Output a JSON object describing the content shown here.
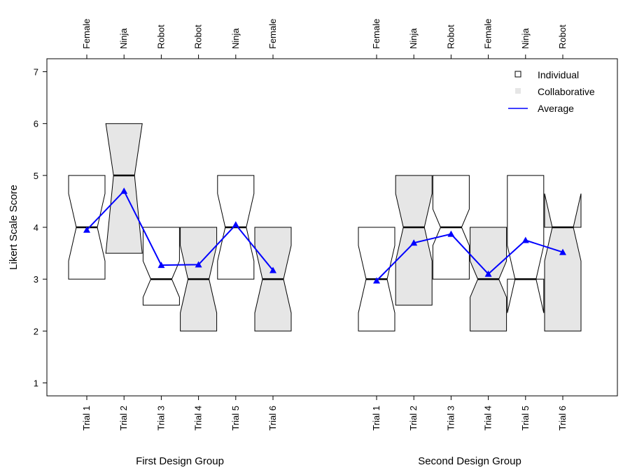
{
  "chart_data": {
    "type": "boxplot",
    "ylabel": "Likert Scale Score",
    "ylim": [
      0.75,
      7.25
    ],
    "yticks": [
      1,
      2,
      3,
      4,
      5,
      6,
      7
    ],
    "legend": {
      "placement": "top-right",
      "entries": [
        {
          "label": "Individual",
          "kind": "individual"
        },
        {
          "label": "Collaborative",
          "kind": "collaborative"
        },
        {
          "label": "Average",
          "kind": "average"
        }
      ]
    },
    "colors": {
      "individual_fill": "#ffffff",
      "collaborative_fill": "#e6e6e6",
      "average_line": "#0000ff",
      "outline": "#000000"
    },
    "groups": [
      {
        "name": "First Design Group",
        "trials": [
          {
            "label": "Trial 1",
            "top_label": "Female",
            "type": "individual",
            "q1": 3,
            "median": 4,
            "q3": 5,
            "notch_lo": 3.35,
            "notch_hi": 4.65,
            "mean": 3.95
          },
          {
            "label": "Trial 2",
            "top_label": "Ninja",
            "type": "collaborative",
            "q1": 3.5,
            "median": 5,
            "q3": 6,
            "notch_lo": 3.5,
            "notch_hi": 6,
            "mean": 4.7
          },
          {
            "label": "Trial 3",
            "top_label": "Robot",
            "type": "individual",
            "q1": 2.5,
            "median": 3,
            "q3": 4,
            "notch_lo": 2.65,
            "notch_hi": 3.35,
            "mean": 3.27
          },
          {
            "label": "Trial 4",
            "top_label": "Robot",
            "type": "collaborative",
            "q1": 2,
            "median": 3,
            "q3": 4,
            "notch_lo": 2.35,
            "notch_hi": 3.65,
            "mean": 3.28
          },
          {
            "label": "Trial 5",
            "top_label": "Ninja",
            "type": "individual",
            "q1": 3,
            "median": 4,
            "q3": 5,
            "notch_lo": 3.35,
            "notch_hi": 4.65,
            "mean": 4.05
          },
          {
            "label": "Trial 6",
            "top_label": "Female",
            "type": "collaborative",
            "q1": 2,
            "median": 3,
            "q3": 4,
            "notch_lo": 2.35,
            "notch_hi": 3.65,
            "mean": 3.17
          }
        ]
      },
      {
        "name": "Second Design Group",
        "trials": [
          {
            "label": "Trial 1",
            "top_label": "Female",
            "type": "individual",
            "q1": 2,
            "median": 3,
            "q3": 4,
            "notch_lo": 2.35,
            "notch_hi": 3.65,
            "mean": 2.97
          },
          {
            "label": "Trial 2",
            "top_label": "Ninja",
            "type": "collaborative",
            "q1": 2.5,
            "median": 4,
            "q3": 5,
            "notch_lo": 3.35,
            "notch_hi": 4.65,
            "mean": 3.7
          },
          {
            "label": "Trial 3",
            "top_label": "Robot",
            "type": "individual",
            "q1": 3,
            "median": 4,
            "q3": 5,
            "notch_lo": 3.65,
            "notch_hi": 4.35,
            "mean": 3.87
          },
          {
            "label": "Trial 4",
            "top_label": "Female",
            "type": "collaborative",
            "q1": 2,
            "median": 3,
            "q3": 4,
            "notch_lo": 2.65,
            "notch_hi": 3.35,
            "mean": 3.1
          },
          {
            "label": "Trial 5",
            "top_label": "Ninja",
            "type": "individual",
            "q1": 3,
            "median": 3,
            "q3": 5,
            "notch_lo": 2.35,
            "notch_hi": 3.65,
            "mean": 3.75
          },
          {
            "label": "Trial 6",
            "top_label": "Robot",
            "type": "collaborative",
            "q1": 2,
            "median": 4,
            "q3": 4,
            "notch_lo": 3.35,
            "notch_hi": 4.65,
            "mean": 3.52
          }
        ]
      }
    ]
  }
}
